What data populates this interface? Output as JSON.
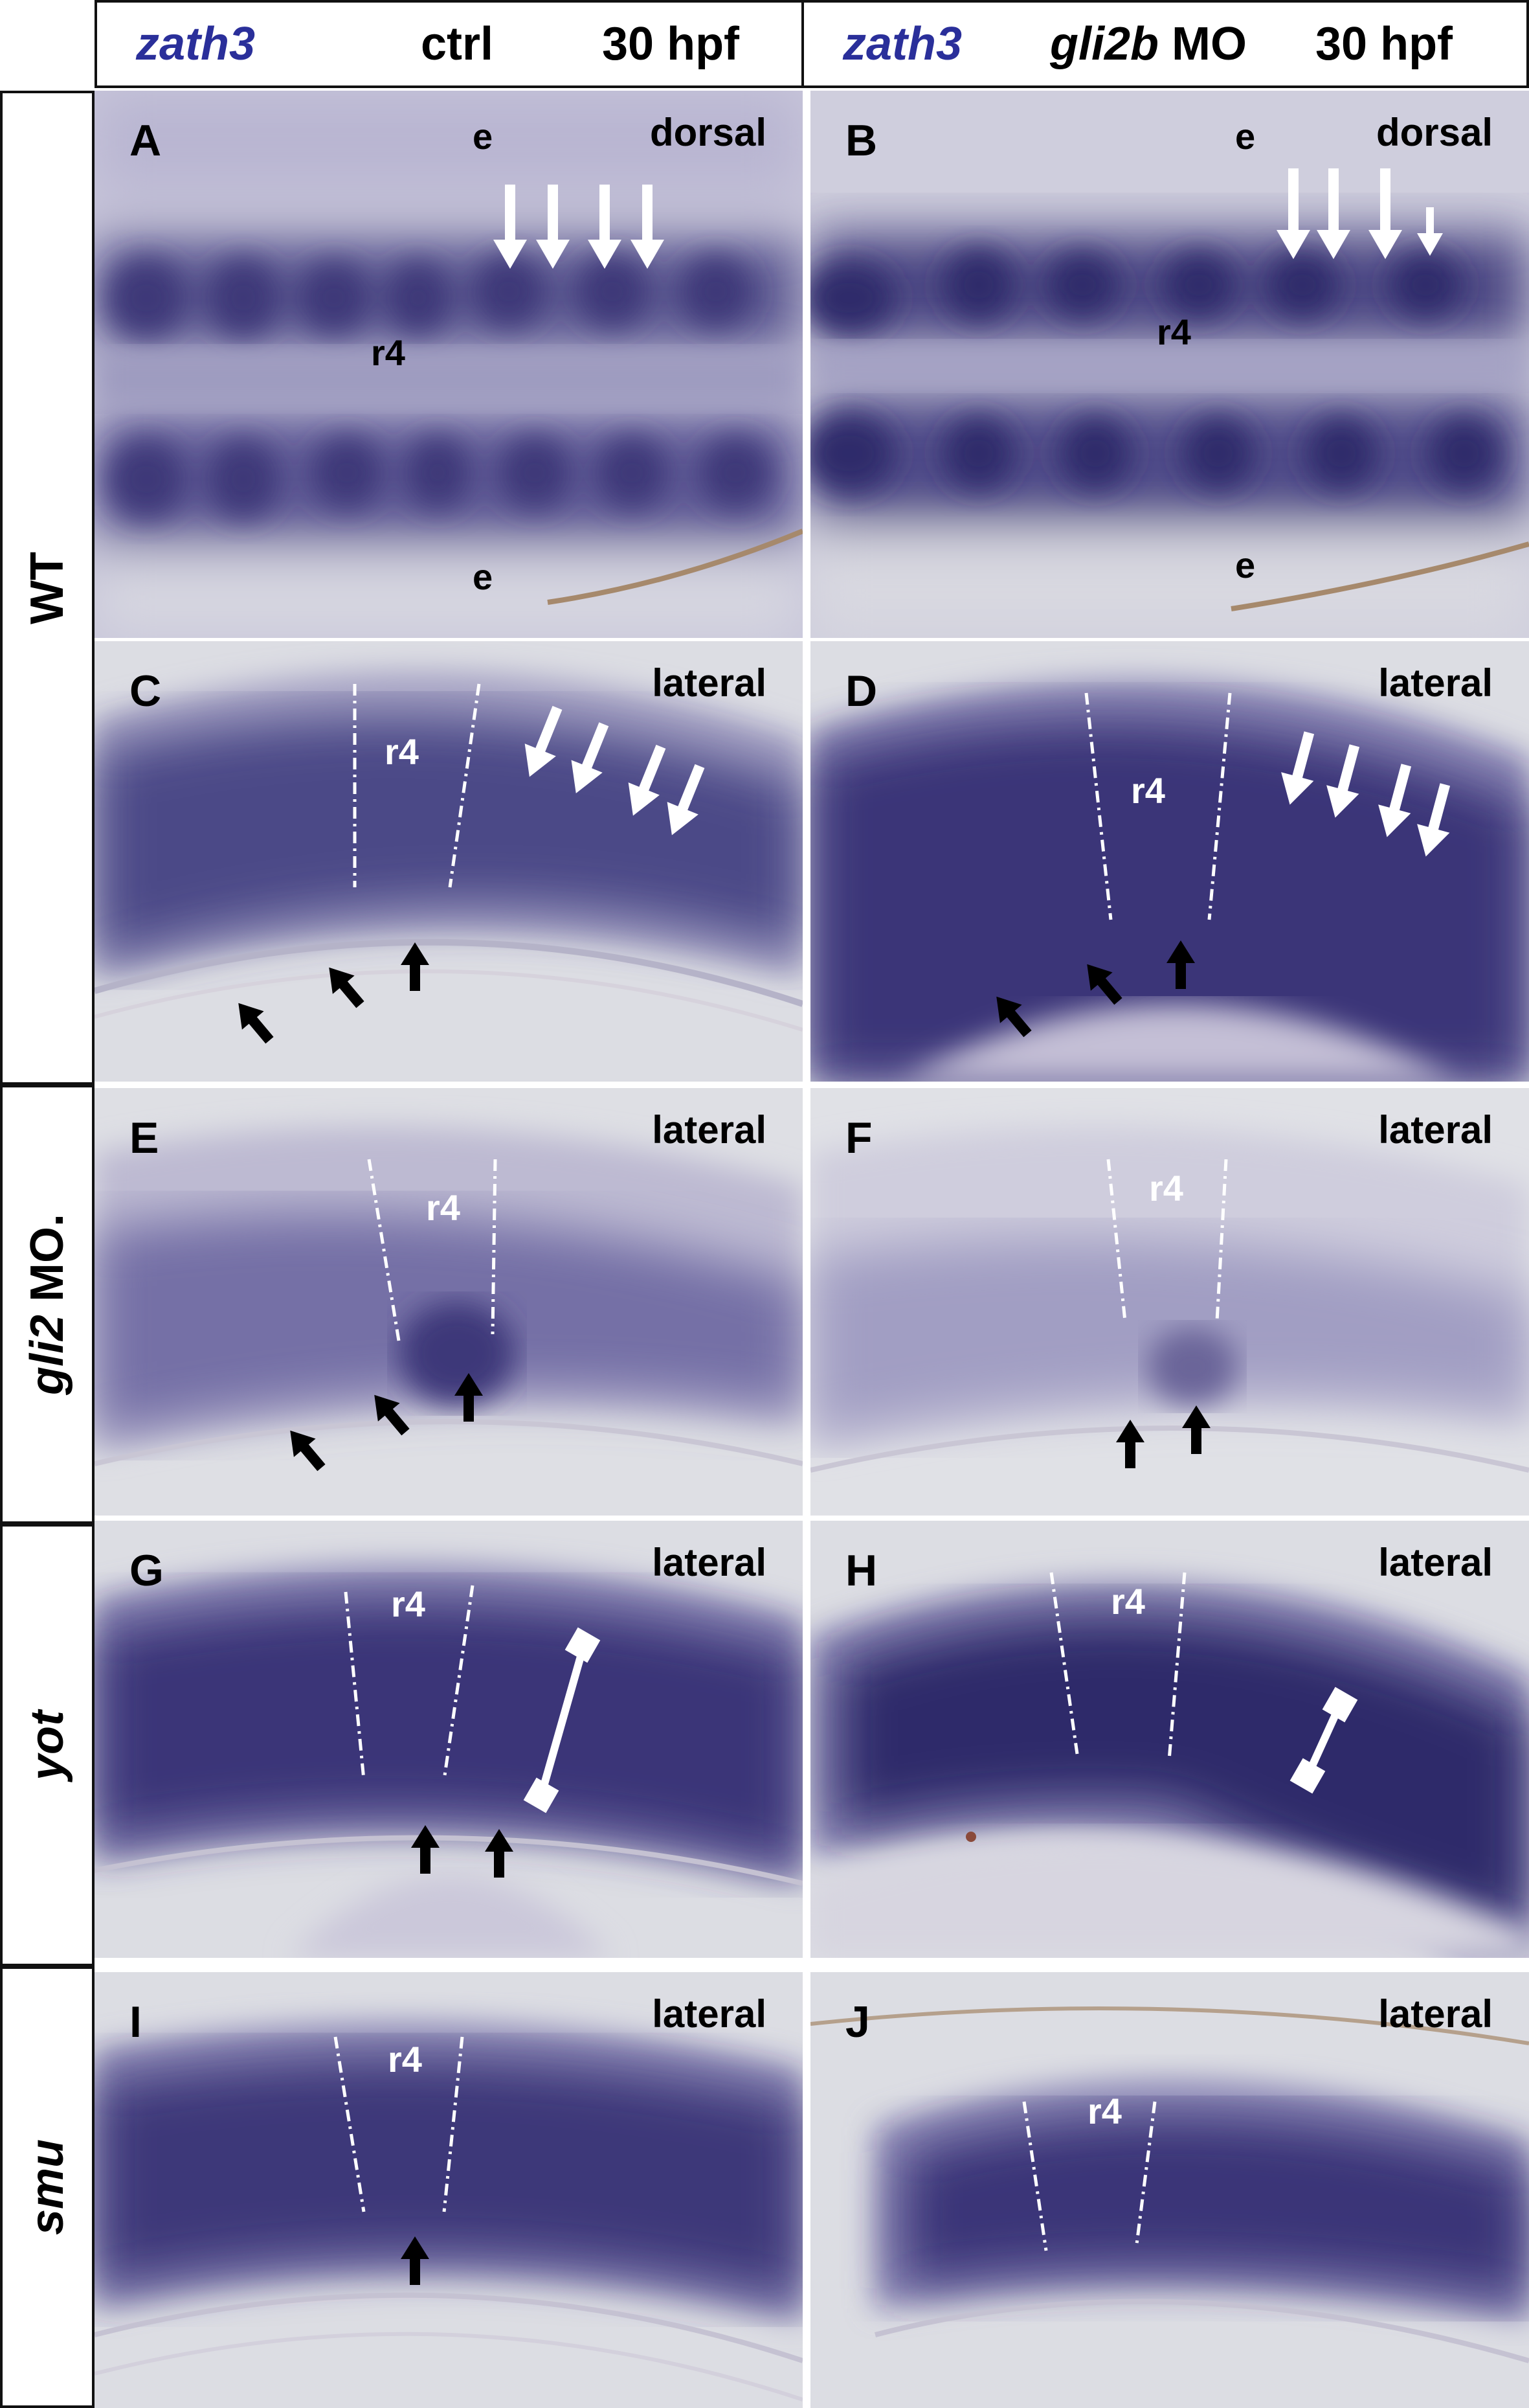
{
  "header": {
    "left": {
      "gene": "zath3",
      "condition": "ctrl",
      "stage": "30 hpf"
    },
    "right": {
      "gene": "zath3",
      "morpholino": "gli2b",
      "mo_suffix": " MO",
      "stage": "30 hpf"
    }
  },
  "rows": [
    {
      "label": "WT",
      "italic": false
    },
    {
      "label_italic": "gli2",
      "label_suffix": " MO.",
      "italic": true
    },
    {
      "label": "yot",
      "italic": true
    },
    {
      "label": "smu",
      "italic": true
    }
  ],
  "panels": {
    "A": {
      "letter": "A",
      "view": "dorsal",
      "mark_top": "e",
      "mark_bottom": "e",
      "rhombomere": "r4"
    },
    "B": {
      "letter": "B",
      "view": "dorsal",
      "mark_top": "e",
      "mark_bottom": "e",
      "rhombomere": "r4"
    },
    "C": {
      "letter": "C",
      "view": "lateral",
      "rhombomere": "r4"
    },
    "D": {
      "letter": "D",
      "view": "lateral",
      "rhombomere": "r4"
    },
    "E": {
      "letter": "E",
      "view": "lateral",
      "rhombomere": "r4"
    },
    "F": {
      "letter": "F",
      "view": "lateral",
      "rhombomere": "r4"
    },
    "G": {
      "letter": "G",
      "view": "lateral",
      "rhombomere": "r4"
    },
    "H": {
      "letter": "H",
      "view": "lateral",
      "rhombomere": "r4"
    },
    "I": {
      "letter": "I",
      "view": "lateral",
      "rhombomere": "r4"
    },
    "J": {
      "letter": "J",
      "view": "lateral",
      "rhombomere": "r4"
    }
  },
  "colors": {
    "stain": "#3a3478",
    "stain_light": "#8f8bb8",
    "tissue": "#c9c6d6",
    "background": "#dcdde3",
    "gene_text": "#2a2f9a"
  }
}
